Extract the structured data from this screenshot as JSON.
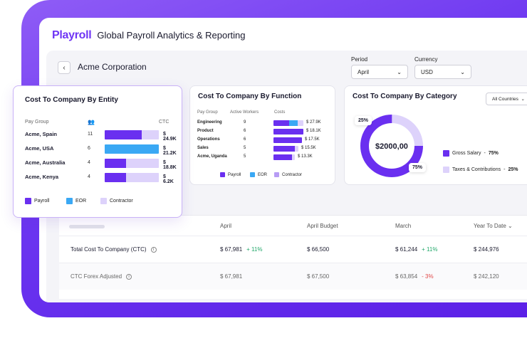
{
  "app": {
    "brand": "Playroll",
    "title": "Global Payroll Analytics & Reporting"
  },
  "filters": {
    "company": "Acme Corporation",
    "period_label": "Period",
    "period_value": "April",
    "currency_label": "Currency",
    "currency_value": "USD"
  },
  "colors": {
    "payroll": "#6a2ff0",
    "eor": "#3aa8f4",
    "contractor": "#ddd2fb",
    "accent": "#6f35f5"
  },
  "entity_card": {
    "title": "Cost To Company By Entity",
    "col_group": "Pay Group",
    "col_ctc": "CTC",
    "rows": [
      {
        "name": "Acme, Spain",
        "count": "11",
        "value": "$ 24.9K",
        "payroll": 0.68,
        "eor": 0,
        "contractor": 0.32
      },
      {
        "name": "Acme, USA",
        "count": "6",
        "value": "$ 21.2K",
        "payroll": 0,
        "eor": 1.0,
        "contractor": 0
      },
      {
        "name": "Acme, Australia",
        "count": "4",
        "value": "$ 18.8K",
        "payroll": 0.4,
        "eor": 0,
        "contractor": 0.6
      },
      {
        "name": "Acme, Kenya",
        "count": "4",
        "value": "$ 6.2K",
        "payroll": 0.4,
        "eor": 0,
        "contractor": 0.6
      }
    ],
    "legend": [
      "Payroll",
      "EOR",
      "Contractor"
    ]
  },
  "function_card": {
    "title": "Cost To Company By Function",
    "col_group": "Pay Group",
    "col_workers": "Active Workers",
    "col_costs": "Costs",
    "rows": [
      {
        "name": "Engineering",
        "count": "9",
        "value": "$ 27.9K",
        "payroll": 22,
        "eor": 12,
        "contractor": 8
      },
      {
        "name": "Product",
        "count": "6",
        "value": "$ 18.1K",
        "payroll": 42,
        "eor": 0,
        "contractor": 0
      },
      {
        "name": "Operations",
        "count": "6",
        "value": "$ 17.5K",
        "payroll": 40,
        "eor": 0,
        "contractor": 0
      },
      {
        "name": "Sales",
        "count": "5",
        "value": "$ 15.5K",
        "payroll": 30,
        "eor": 0,
        "contractor": 5
      },
      {
        "name": "Acme, Uganda",
        "count": "5",
        "value": "$ 13.3K",
        "payroll": 26,
        "eor": 0,
        "contractor": 4
      }
    ],
    "legend": [
      "Payroll",
      "EOR",
      "Contractor"
    ]
  },
  "category_card": {
    "title": "Cost To Company By Category",
    "dropdown": "All Countries",
    "total": "$2000,00",
    "pill_small": "25%",
    "pill_large": "75%",
    "segments": [
      {
        "label": "Gross Salary",
        "value": "75%",
        "share": 0.75
      },
      {
        "label": "Taxes & Contributions",
        "value": "25%",
        "share": 0.25
      }
    ]
  },
  "table": {
    "columns": [
      "April",
      "April Budget",
      "March",
      "Year To Date"
    ],
    "rows": [
      {
        "label": "Total Cost To Company (CTC)",
        "april": "$ 67,981",
        "april_delta": "+ 11%",
        "budget": "$ 66,500",
        "march": "$ 61,244",
        "march_delta": "+ 11%",
        "ytd": "$ 244,976"
      },
      {
        "label": "CTC Forex Adjusted",
        "april": "$ 67,981",
        "april_delta": "",
        "budget": "$ 67,500",
        "march": "$ 63,854",
        "march_delta": "- 3%",
        "ytd": "$ 242,120"
      }
    ]
  }
}
